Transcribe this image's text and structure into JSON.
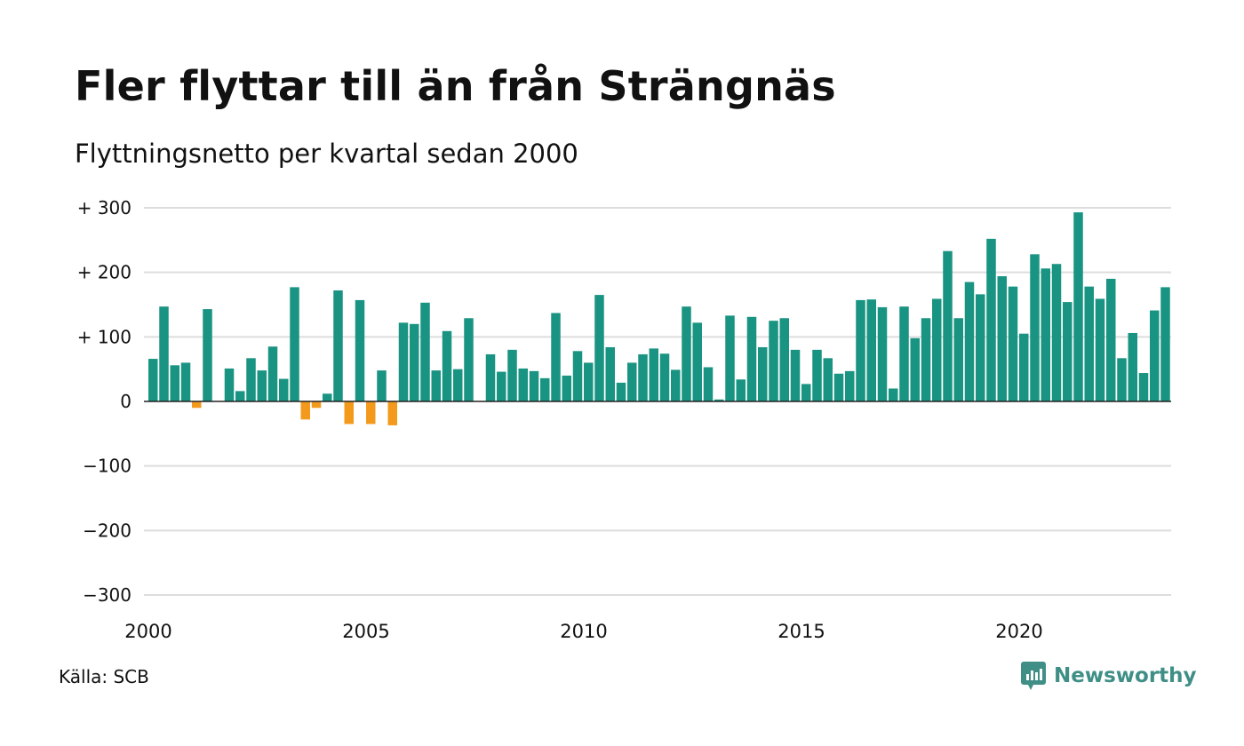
{
  "title": "Fler flyttar till än från Strängnäs",
  "subtitle": "Flyttningsnetto per kvartal sedan 2000",
  "source": "Källa: SCB",
  "brand": {
    "name": "Newsworthy",
    "icon": "newsworthy-logo-icon",
    "color": "#3f8f87"
  },
  "colors": {
    "positive": "#1a9482",
    "negative": "#f39a1c",
    "grid": "#dddddd",
    "zero_line": "#222222"
  },
  "chart_data": {
    "type": "bar",
    "title": "Fler flyttar till än från Strängnäs",
    "subtitle": "Flyttningsnetto per kvartal sedan 2000",
    "ylim": [
      -300,
      300
    ],
    "yticks": [
      300,
      200,
      100,
      0,
      -100,
      -200,
      -300
    ],
    "ytick_labels": [
      "+ 300",
      "+ 200",
      "+ 100",
      "0",
      "−100",
      "−200",
      "−300"
    ],
    "xticks": [
      {
        "year": 2000,
        "label": "2000"
      },
      {
        "year": 2005,
        "label": "2005"
      },
      {
        "year": 2010,
        "label": "2010"
      },
      {
        "year": 2015,
        "label": "2015"
      },
      {
        "year": 2020,
        "label": "2020"
      }
    ],
    "start": "2000 Q1",
    "frequency": "quarter",
    "grid": true,
    "values": [
      66,
      147,
      56,
      60,
      -10,
      143,
      0,
      51,
      16,
      67,
      48,
      85,
      35,
      177,
      -28,
      -10,
      12,
      172,
      -35,
      157,
      -35,
      48,
      -37,
      122,
      120,
      153,
      48,
      109,
      50,
      129,
      0,
      73,
      46,
      80,
      51,
      47,
      36,
      137,
      40,
      78,
      60,
      165,
      84,
      29,
      60,
      73,
      82,
      74,
      49,
      147,
      122,
      53,
      3,
      133,
      34,
      131,
      84,
      125,
      129,
      80,
      27,
      80,
      67,
      43,
      47,
      157,
      158,
      146,
      20,
      147,
      98,
      129,
      159,
      233,
      129,
      185,
      166,
      252,
      194,
      178,
      105,
      228,
      206,
      213,
      154,
      293,
      178,
      159,
      190,
      67,
      106,
      44,
      141,
      177
    ]
  }
}
